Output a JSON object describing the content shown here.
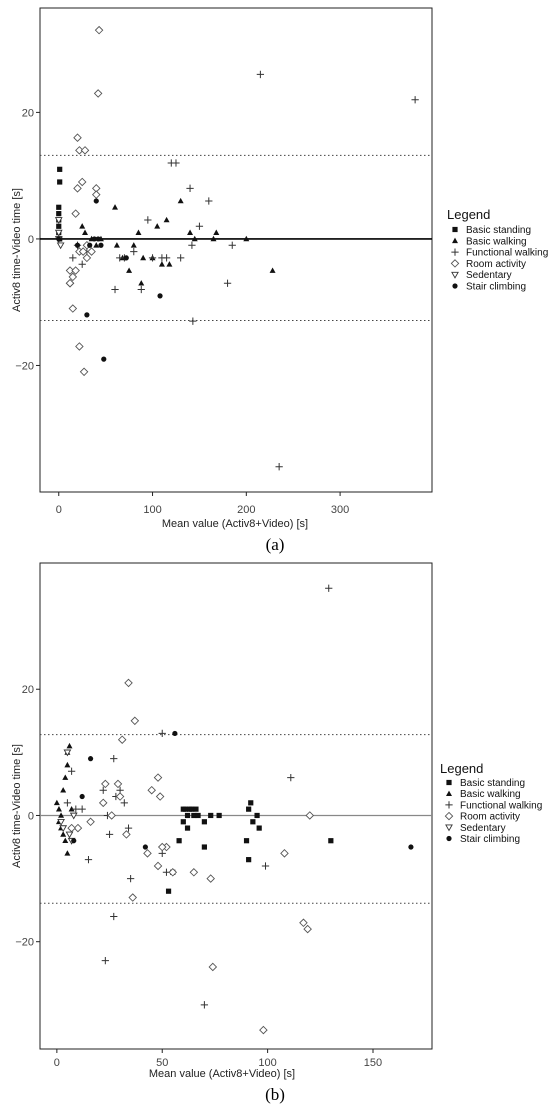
{
  "captions": [
    "(a)",
    "(b)"
  ],
  "legend_marker_names": [
    "basic-standing-marker-icon",
    "basic-walking-marker-icon",
    "functional-walking-marker-icon",
    "room-activity-marker-icon",
    "sedentary-marker-icon",
    "stair-climbing-marker-icon"
  ],
  "chart_data": [
    {
      "type": "scatter",
      "title": "",
      "xlabel": "Mean value (Activ8+Video) [s]",
      "ylabel": "Activ8 time-Video time [s]",
      "xlim": [
        -20,
        398
      ],
      "ylim": [
        -40,
        36.5
      ],
      "xticks": [
        0,
        100,
        200,
        300
      ],
      "yticks": [
        20,
        0,
        -20
      ],
      "ytick_labels": [
        "20",
        "0",
        "−20"
      ],
      "mean_line": 0,
      "limits_of_agreement": [
        13.2,
        -12.9
      ],
      "grid": false,
      "legend_title": "Legend",
      "legend_position": "right",
      "series": [
        {
          "name": "Basic standing",
          "marker": "square",
          "points": [
            [
              1,
              11
            ],
            [
              1,
              9
            ],
            [
              0,
              5
            ],
            [
              0,
              4
            ],
            [
              0,
              3
            ],
            [
              0,
              2
            ],
            [
              0,
              1
            ],
            [
              1,
              0
            ]
          ]
        },
        {
          "name": "Basic walking",
          "marker": "triangle",
          "points": [
            [
              25,
              2
            ],
            [
              28,
              1
            ],
            [
              35,
              0
            ],
            [
              45,
              0
            ],
            [
              60,
              5
            ],
            [
              62,
              -1
            ],
            [
              68,
              -3
            ],
            [
              75,
              -5
            ],
            [
              80,
              -1
            ],
            [
              85,
              1
            ],
            [
              88,
              -7
            ],
            [
              90,
              -3
            ],
            [
              100,
              -3
            ],
            [
              105,
              2
            ],
            [
              110,
              -4
            ],
            [
              115,
              3
            ],
            [
              118,
              -4
            ],
            [
              130,
              6
            ],
            [
              140,
              1
            ],
            [
              145,
              0
            ],
            [
              165,
              0
            ],
            [
              168,
              1
            ],
            [
              200,
              0
            ],
            [
              228,
              -5
            ],
            [
              40,
              -1
            ]
          ]
        },
        {
          "name": "Functional walking",
          "marker": "plus",
          "points": [
            [
              15,
              -3
            ],
            [
              20,
              -1
            ],
            [
              25,
              -4
            ],
            [
              30,
              -2
            ],
            [
              60,
              -8
            ],
            [
              65,
              -3
            ],
            [
              70,
              -3
            ],
            [
              80,
              -2
            ],
            [
              88,
              -8
            ],
            [
              95,
              3
            ],
            [
              100,
              -3
            ],
            [
              110,
              -3
            ],
            [
              115,
              -3
            ],
            [
              120,
              12
            ],
            [
              125,
              12
            ],
            [
              130,
              -3
            ],
            [
              140,
              8
            ],
            [
              142,
              -1
            ],
            [
              143,
              -13
            ],
            [
              150,
              2
            ],
            [
              160,
              6
            ],
            [
              180,
              -7
            ],
            [
              185,
              -1
            ],
            [
              215,
              26
            ],
            [
              235,
              -36
            ],
            [
              380,
              22
            ]
          ]
        },
        {
          "name": "Room activity",
          "marker": "diamond",
          "points": [
            [
              43,
              33
            ],
            [
              42,
              23
            ],
            [
              20,
              16
            ],
            [
              22,
              14
            ],
            [
              28,
              14
            ],
            [
              25,
              9
            ],
            [
              20,
              8
            ],
            [
              40,
              8
            ],
            [
              40,
              7
            ],
            [
              18,
              4
            ],
            [
              12,
              -5
            ],
            [
              15,
              -6
            ],
            [
              12,
              -7
            ],
            [
              22,
              -2
            ],
            [
              26,
              -2
            ],
            [
              30,
              -1
            ],
            [
              35,
              -2
            ],
            [
              15,
              -11
            ],
            [
              22,
              -17
            ],
            [
              27,
              -21
            ],
            [
              18,
              -5
            ],
            [
              12,
              -7
            ],
            [
              30,
              -3
            ]
          ]
        },
        {
          "name": "Sedentary",
          "marker": "triangle-down",
          "points": [
            [
              0,
              3
            ],
            [
              0,
              1
            ],
            [
              0,
              0
            ],
            [
              2,
              -1
            ]
          ]
        },
        {
          "name": "Stair climbing",
          "marker": "circle",
          "points": [
            [
              0,
              0
            ],
            [
              20,
              -1
            ],
            [
              30,
              -12
            ],
            [
              33,
              -1
            ],
            [
              38,
              0
            ],
            [
              40,
              6
            ],
            [
              42,
              0
            ],
            [
              45,
              -1
            ],
            [
              48,
              -19
            ],
            [
              72,
              -3
            ],
            [
              108,
              -9
            ]
          ]
        }
      ]
    },
    {
      "type": "scatter",
      "title": "",
      "xlabel": "Mean value (Activ8+Video) [s]",
      "ylabel": "Activ8 time-Video time [s]",
      "xlim": [
        -8,
        178
      ],
      "ylim": [
        -37,
        40
      ],
      "xticks": [
        0,
        50,
        100,
        150
      ],
      "yticks": [
        20,
        0,
        -20
      ],
      "ytick_labels": [
        "20",
        "0",
        "−20"
      ],
      "mean_line": 0,
      "limits_of_agreement": [
        12.8,
        -13.9
      ],
      "grid": false,
      "legend_title": "Legend",
      "legend_position": "right",
      "series": [
        {
          "name": "Basic standing",
          "marker": "square",
          "points": [
            [
              60,
              1
            ],
            [
              61,
              1
            ],
            [
              62,
              0
            ],
            [
              63,
              1
            ],
            [
              64,
              1
            ],
            [
              65,
              0
            ],
            [
              66,
              1
            ],
            [
              67,
              0
            ],
            [
              60,
              -1
            ],
            [
              62,
              -2
            ],
            [
              58,
              -4
            ],
            [
              70,
              -1
            ],
            [
              73,
              0
            ],
            [
              77,
              0
            ],
            [
              70,
              -5
            ],
            [
              55,
              -9
            ],
            [
              53,
              -12
            ],
            [
              91,
              1
            ],
            [
              92,
              2
            ],
            [
              95,
              0
            ],
            [
              93,
              -1
            ],
            [
              96,
              -2
            ],
            [
              90,
              -4
            ],
            [
              91,
              -7
            ],
            [
              130,
              -4
            ]
          ]
        },
        {
          "name": "Basic walking",
          "marker": "triangle",
          "points": [
            [
              0,
              2
            ],
            [
              1,
              1
            ],
            [
              2,
              0
            ],
            [
              3,
              4
            ],
            [
              4,
              6
            ],
            [
              5,
              8
            ],
            [
              6,
              11
            ],
            [
              1,
              -1
            ],
            [
              2,
              -2
            ],
            [
              3,
              -3
            ],
            [
              5,
              -6
            ],
            [
              7,
              1
            ],
            [
              4,
              -4
            ],
            [
              5,
              10
            ]
          ]
        },
        {
          "name": "Functional walking",
          "marker": "plus",
          "points": [
            [
              5,
              2
            ],
            [
              7,
              7
            ],
            [
              9,
              1
            ],
            [
              12,
              1
            ],
            [
              15,
              -7
            ],
            [
              22,
              4
            ],
            [
              24,
              0
            ],
            [
              25,
              -3
            ],
            [
              28,
              3
            ],
            [
              27,
              9
            ],
            [
              30,
              4
            ],
            [
              32,
              2
            ],
            [
              35,
              -10
            ],
            [
              34,
              -2
            ],
            [
              23,
              -23
            ],
            [
              27,
              -16
            ],
            [
              50,
              13
            ],
            [
              50,
              -6
            ],
            [
              52,
              -9
            ],
            [
              70,
              -30
            ],
            [
              99,
              -8
            ],
            [
              111,
              6
            ],
            [
              129,
              36
            ]
          ]
        },
        {
          "name": "Room activity",
          "marker": "diamond",
          "points": [
            [
              34,
              21
            ],
            [
              37,
              15
            ],
            [
              31,
              12
            ],
            [
              23,
              5
            ],
            [
              29,
              5
            ],
            [
              30,
              3
            ],
            [
              45,
              4
            ],
            [
              48,
              6
            ],
            [
              49,
              3
            ],
            [
              52,
              -5
            ],
            [
              43,
              -6
            ],
            [
              48,
              -8
            ],
            [
              50,
              -5
            ],
            [
              55,
              -9
            ],
            [
              65,
              -9
            ],
            [
              73,
              -10
            ],
            [
              74,
              -24
            ],
            [
              98,
              -34
            ],
            [
              108,
              -6
            ],
            [
              117,
              -17
            ],
            [
              119,
              -18
            ],
            [
              120,
              0
            ],
            [
              26,
              0
            ],
            [
              16,
              -1
            ],
            [
              10,
              -2
            ],
            [
              33,
              -3
            ],
            [
              36,
              -13
            ],
            [
              22,
              2
            ],
            [
              7,
              -2
            ]
          ]
        },
        {
          "name": "Sedentary",
          "marker": "triangle-down",
          "points": [
            [
              5,
              10
            ],
            [
              2,
              -1
            ],
            [
              3,
              -2
            ],
            [
              8,
              0
            ],
            [
              6,
              -3
            ],
            [
              7,
              -4
            ]
          ]
        },
        {
          "name": "Stair climbing",
          "marker": "circle",
          "points": [
            [
              16,
              9
            ],
            [
              12,
              3
            ],
            [
              56,
              13
            ],
            [
              42,
              -5
            ],
            [
              8,
              -4
            ],
            [
              168,
              -5
            ]
          ]
        }
      ]
    }
  ]
}
